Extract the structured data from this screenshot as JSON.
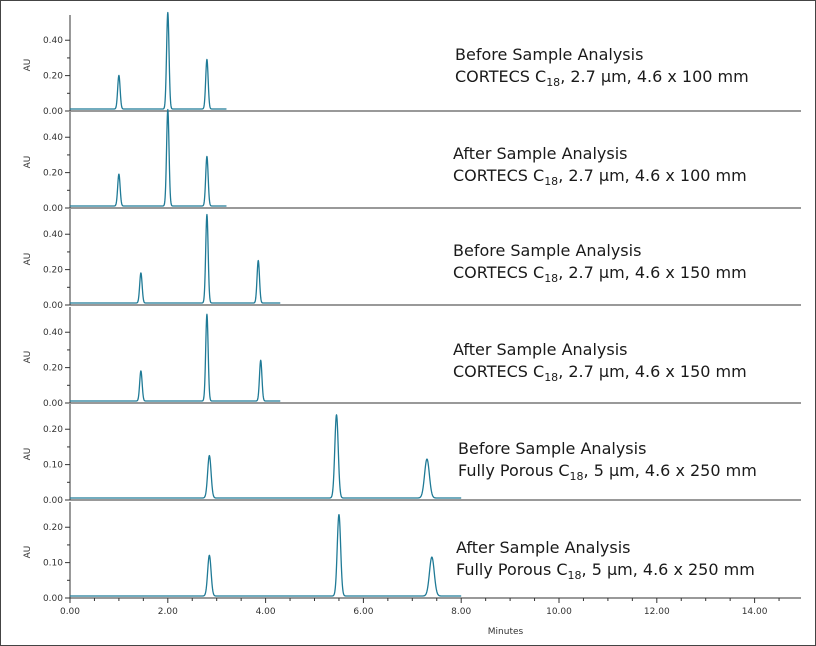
{
  "chart_data": {
    "type": "line",
    "xlabel": "Minutes",
    "xlim": [
      0,
      15
    ],
    "xticks": [
      "0.00",
      "2.00",
      "4.00",
      "6.00",
      "8.00",
      "10.00",
      "12.00",
      "14.00"
    ],
    "line_color": "#1f7a96",
    "panels": [
      {
        "ylabel": "AU",
        "ylim": [
          0,
          0.52
        ],
        "yticks": [
          "0.00",
          "0.20",
          "0.40"
        ],
        "caption": {
          "line1": "Before Sample Analysis",
          "pre": "CORTECS C",
          "sub": "18",
          "post": ", 2.7 µm, 4.6 x 100 mm"
        },
        "trace_end": 3.2,
        "peaks": [
          {
            "x": 1.0,
            "y": 0.19
          },
          {
            "x": 2.0,
            "y": 0.545
          },
          {
            "x": 2.8,
            "y": 0.28
          }
        ]
      },
      {
        "ylabel": "AU",
        "ylim": [
          0,
          0.52
        ],
        "yticks": [
          "0.00",
          "0.20",
          "0.40"
        ],
        "caption": {
          "line1": "After Sample Analysis",
          "pre": "CORTECS C",
          "sub": "18",
          "post": ", 2.7 µm, 4.6 x 100 mm"
        },
        "trace_end": 3.2,
        "peaks": [
          {
            "x": 1.0,
            "y": 0.18
          },
          {
            "x": 2.0,
            "y": 0.545
          },
          {
            "x": 2.8,
            "y": 0.28
          }
        ]
      },
      {
        "ylabel": "AU",
        "ylim": [
          0,
          0.52
        ],
        "yticks": [
          "0.00",
          "0.20",
          "0.40"
        ],
        "caption": {
          "line1": "Before Sample Analysis",
          "pre": "CORTECS C",
          "sub": "18",
          "post": ", 2.7 µm, 4.6 x 150 mm"
        },
        "trace_end": 4.3,
        "peaks": [
          {
            "x": 1.45,
            "y": 0.17
          },
          {
            "x": 2.8,
            "y": 0.5
          },
          {
            "x": 3.85,
            "y": 0.24
          }
        ]
      },
      {
        "ylabel": "AU",
        "ylim": [
          0,
          0.52
        ],
        "yticks": [
          "0.00",
          "0.20",
          "0.40"
        ],
        "caption": {
          "line1": "After Sample Analysis",
          "pre": "CORTECS C",
          "sub": "18",
          "post": ", 2.7 µm, 4.6 x 150 mm"
        },
        "trace_end": 4.3,
        "peaks": [
          {
            "x": 1.45,
            "y": 0.17
          },
          {
            "x": 2.8,
            "y": 0.49
          },
          {
            "x": 3.9,
            "y": 0.23
          }
        ]
      },
      {
        "ylabel": "AU",
        "ylim": [
          0,
          0.26
        ],
        "yticks": [
          "0.00",
          "0.10",
          "0.20"
        ],
        "caption": {
          "line1": "Before Sample Analysis",
          "pre": "Fully Porous C",
          "sub": "18",
          "post": ", 5 µm, 4.6 x 250 mm"
        },
        "trace_end": 8.0,
        "peaks": [
          {
            "x": 2.85,
            "y": 0.12
          },
          {
            "x": 5.45,
            "y": 0.235
          },
          {
            "x": 7.3,
            "y": 0.11
          }
        ]
      },
      {
        "ylabel": "AU",
        "ylim": [
          0,
          0.26
        ],
        "yticks": [
          "0.00",
          "0.10",
          "0.20"
        ],
        "caption": {
          "line1": "After Sample Analysis",
          "pre": "Fully Porous C",
          "sub": "18",
          "post": ", 5 µm, 4.6 x 250 mm"
        },
        "trace_end": 8.0,
        "peaks": [
          {
            "x": 2.85,
            "y": 0.115
          },
          {
            "x": 5.5,
            "y": 0.23
          },
          {
            "x": 7.4,
            "y": 0.11
          }
        ]
      }
    ]
  }
}
